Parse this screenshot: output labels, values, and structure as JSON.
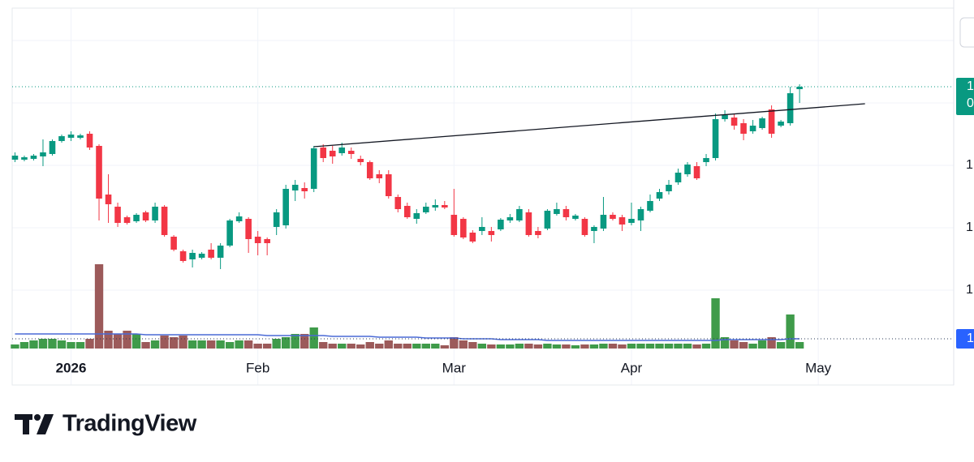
{
  "chart_data": {
    "type": "candlestick",
    "open": [
      303,
      303,
      304,
      307,
      310,
      326,
      330,
      330,
      335,
      320,
      260,
      245,
      232,
      227,
      238,
      228,
      245,
      208,
      190,
      180,
      182,
      192,
      182,
      197,
      227,
      230,
      208,
      205,
      220,
      222,
      265,
      268,
      267,
      318,
      314,
      311,
      314,
      304,
      300,
      285,
      285,
      257,
      246,
      230,
      238,
      244,
      247,
      235,
      230,
      213,
      215,
      215,
      217,
      228,
      228,
      238,
      215,
      218,
      236,
      242,
      230,
      230,
      215,
      218,
      235,
      232,
      225,
      228,
      240,
      255,
      264,
      275,
      285,
      295,
      300,
      305,
      353,
      355,
      348,
      338,
      342,
      365,
      345,
      348,
      390
    ],
    "high": [
      312,
      308,
      310,
      328,
      328,
      334,
      338,
      335,
      338,
      322,
      285,
      250,
      234,
      237,
      240,
      250,
      247,
      210,
      192,
      192,
      189,
      200,
      200,
      230,
      238,
      232,
      215,
      207,
      242,
      272,
      278,
      275,
      320,
      322,
      320,
      324,
      318,
      308,
      302,
      290,
      290,
      260,
      250,
      242,
      250,
      254,
      252,
      267,
      232,
      216,
      232,
      220,
      231,
      236,
      246,
      242,
      220,
      242,
      250,
      246,
      236,
      232,
      222,
      257,
      238,
      235,
      250,
      245,
      260,
      267,
      278,
      292,
      300,
      300,
      310,
      360,
      364,
      360,
      353,
      352,
      356,
      370,
      352,
      393,
      396
    ],
    "low": [
      300,
      301,
      302,
      295,
      308,
      324,
      326,
      328,
      315,
      228,
      225,
      220,
      223,
      225,
      226,
      225,
      208,
      190,
      176,
      170,
      180,
      180,
      168,
      195,
      225,
      188,
      185,
      185,
      210,
      218,
      252,
      255,
      263,
      300,
      298,
      308,
      304,
      296,
      278,
      274,
      255,
      238,
      230,
      224,
      236,
      240,
      242,
      208,
      205,
      200,
      210,
      202,
      215,
      225,
      226,
      208,
      206,
      216,
      234,
      228,
      228,
      208,
      200,
      215,
      228,
      215,
      222,
      215,
      238,
      252,
      260,
      272,
      282,
      278,
      295,
      302,
      350,
      340,
      327,
      335,
      340,
      330,
      343,
      345,
      373
    ],
    "close": [
      308,
      306,
      308,
      312,
      326,
      332,
      334,
      333,
      318,
      255,
      248,
      225,
      225,
      235,
      228,
      245,
      210,
      192,
      178,
      188,
      187,
      182,
      197,
      228,
      233,
      205,
      200,
      200,
      238,
      267,
      272,
      264,
      317,
      305,
      307,
      318,
      310,
      300,
      280,
      280,
      258,
      242,
      232,
      237,
      245,
      247,
      244,
      210,
      207,
      202,
      220,
      210,
      229,
      232,
      242,
      210,
      210,
      240,
      242,
      232,
      234,
      210,
      220,
      235,
      230,
      223,
      230,
      242,
      252,
      263,
      272,
      287,
      297,
      280,
      305,
      353,
      358,
      345,
      335,
      345,
      354,
      335,
      350,
      385,
      393
    ],
    "volume": [
      5,
      8,
      10,
      12,
      12,
      10,
      8,
      8,
      12,
      104,
      22,
      18,
      22,
      18,
      8,
      10,
      16,
      14,
      16,
      10,
      10,
      10,
      10,
      8,
      10,
      10,
      6,
      6,
      12,
      14,
      18,
      18,
      26,
      8,
      6,
      6,
      6,
      5,
      8,
      6,
      10,
      6,
      6,
      6,
      6,
      6,
      4,
      14,
      10,
      8,
      6,
      5,
      5,
      5,
      6,
      6,
      5,
      6,
      5,
      5,
      4,
      5,
      5,
      6,
      6,
      5,
      6,
      6,
      6,
      6,
      6,
      6,
      6,
      5,
      6,
      62,
      14,
      10,
      8,
      6,
      10,
      14,
      8,
      42,
      8
    ],
    "volume_ma": [
      18,
      18,
      18,
      18,
      18,
      18,
      18,
      18,
      18,
      18,
      18,
      18,
      18,
      18,
      17,
      17,
      17,
      17,
      17,
      17,
      17,
      17,
      17,
      17,
      17,
      17,
      17,
      16,
      16,
      16,
      16,
      16,
      16,
      16,
      15,
      15,
      15,
      15,
      15,
      14,
      14,
      14,
      14,
      14,
      13,
      13,
      13,
      13,
      12,
      12,
      12,
      12,
      11,
      11,
      11,
      11,
      11,
      10,
      10,
      10,
      10,
      10,
      10,
      10,
      10,
      10,
      10,
      10,
      10,
      10,
      10,
      10,
      10,
      10,
      10,
      10,
      11,
      11,
      11,
      11,
      11,
      11,
      11,
      12,
      12
    ],
    "up_color": "#089981",
    "down_color": "#f23645",
    "volume_up_color": "#3f9b4a",
    "volume_down_color": "#9c5a5a",
    "volume_ma_color": "#4a6ad6",
    "xlim": [
      -0.3,
      100.5
    ],
    "ylim": [
      25,
      490
    ],
    "vlim": [
      0,
      104
    ],
    "xticks": [
      {
        "value": 6,
        "label": "2026"
      },
      {
        "value": 26,
        "label": "Feb"
      },
      {
        "value": 47,
        "label": "Mar"
      },
      {
        "value": 66,
        "label": "Apr"
      },
      {
        "value": 86,
        "label": "May"
      }
    ],
    "yticks": [
      {
        "value": 450,
        "label": null
      },
      {
        "value": 373,
        "label": null
      },
      {
        "value": 296,
        "label": "1"
      },
      {
        "value": 219,
        "label": "1"
      },
      {
        "value": 142,
        "label": "1"
      }
    ],
    "grid": true,
    "trendline": {
      "x": [
        32,
        91
      ],
      "y": [
        319,
        372
      ],
      "color": "#131722"
    },
    "last_price_label": [
      "1",
      "0"
    ],
    "last_volume_label": "1"
  },
  "logo_text": "TradingView"
}
